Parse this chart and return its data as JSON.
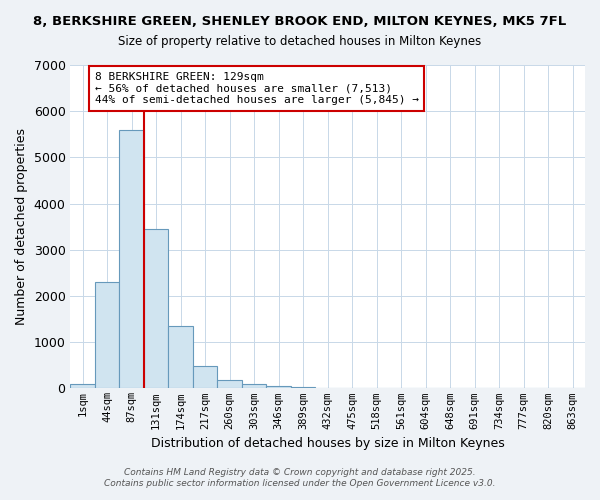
{
  "title": "8, BERKSHIRE GREEN, SHENLEY BROOK END, MILTON KEYNES, MK5 7FL",
  "subtitle": "Size of property relative to detached houses in Milton Keynes",
  "xlabel": "Distribution of detached houses by size in Milton Keynes",
  "ylabel": "Number of detached properties",
  "bin_labels": [
    "1sqm",
    "44sqm",
    "87sqm",
    "131sqm",
    "174sqm",
    "217sqm",
    "260sqm",
    "303sqm",
    "346sqm",
    "389sqm",
    "432sqm",
    "475sqm",
    "518sqm",
    "561sqm",
    "604sqm",
    "648sqm",
    "691sqm",
    "734sqm",
    "777sqm",
    "820sqm",
    "863sqm"
  ],
  "bin_values": [
    100,
    2300,
    5600,
    3450,
    1350,
    480,
    180,
    90,
    60,
    30,
    10,
    0,
    0,
    0,
    0,
    0,
    0,
    0,
    0,
    0,
    0
  ],
  "bar_color": "#d0e4f0",
  "bar_edge_color": "#6699bb",
  "grid_color": "#c8d8e8",
  "property_line_bin": 3,
  "annotation_line1": "8 BERKSHIRE GREEN: 129sqm",
  "annotation_line2": "← 56% of detached houses are smaller (7,513)",
  "annotation_line3": "44% of semi-detached houses are larger (5,845) →",
  "annotation_box_color": "#cc0000",
  "ylim": [
    0,
    7000
  ],
  "footer1": "Contains HM Land Registry data © Crown copyright and database right 2025.",
  "footer2": "Contains public sector information licensed under the Open Government Licence v3.0.",
  "bg_color": "#eef2f6",
  "plot_bg_color": "#ffffff"
}
